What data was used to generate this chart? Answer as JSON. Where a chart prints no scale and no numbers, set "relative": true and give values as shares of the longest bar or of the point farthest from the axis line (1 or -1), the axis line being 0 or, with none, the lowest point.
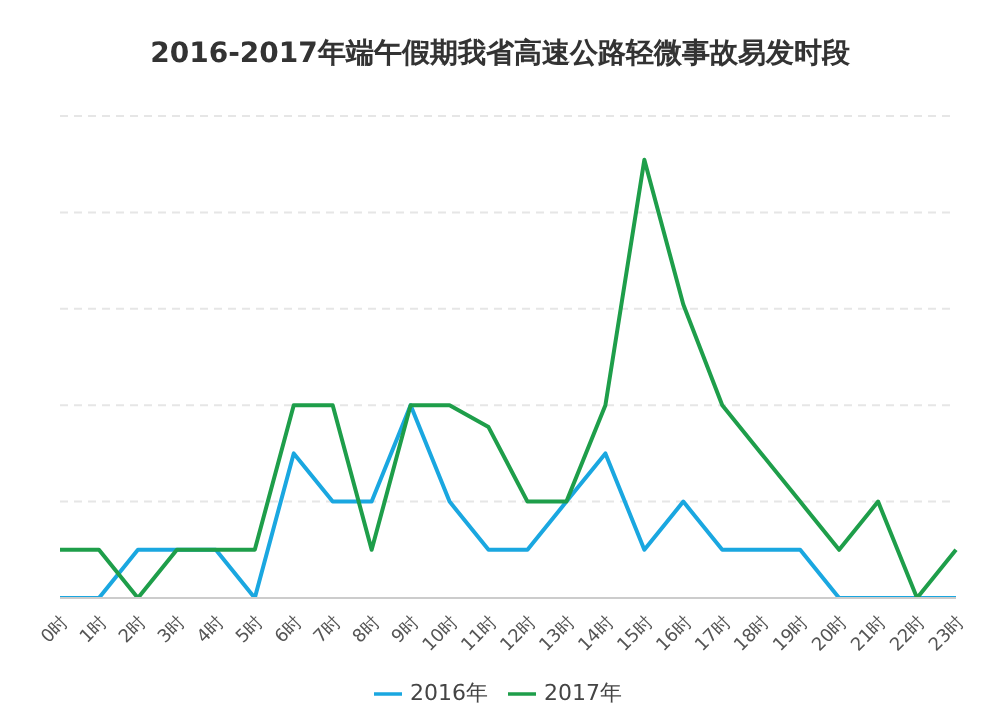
{
  "chart_data": {
    "type": "line",
    "title": "2016-2017年端午假期我省高速公路轻微事故易发时段",
    "categories": [
      "0时",
      "1时",
      "2时",
      "3时",
      "4时",
      "5时",
      "6时",
      "7时",
      "8时",
      "9时",
      "10时",
      "11时",
      "12时",
      "13时",
      "14时",
      "15时",
      "16时",
      "17时",
      "18时",
      "19时",
      "20时",
      "21时",
      "22时",
      "23时"
    ],
    "relative": true,
    "grid": "y",
    "legend": "bottom",
    "marker": "none",
    "line_style": "solid",
    "series": [
      {
        "name": "2016年",
        "color": "#1aa7e0",
        "values": [
          0,
          0,
          0.11,
          0.11,
          0.11,
          0,
          0.33,
          0.22,
          0.22,
          0.44,
          0.22,
          0.11,
          0.11,
          0.22,
          0.33,
          0.11,
          0.22,
          0.11,
          0.11,
          0.11,
          0,
          0,
          0,
          0
        ]
      },
      {
        "name": "2017年",
        "color": "#1e9e4a",
        "values": [
          0.11,
          0.11,
          0,
          0.11,
          0.11,
          0.11,
          0.44,
          0.44,
          0.11,
          0.44,
          0.44,
          0.39,
          0.22,
          0.22,
          0.44,
          1,
          0.67,
          0.44,
          0.33,
          0.22,
          0.11,
          0.22,
          0,
          0.11
        ]
      }
    ]
  }
}
